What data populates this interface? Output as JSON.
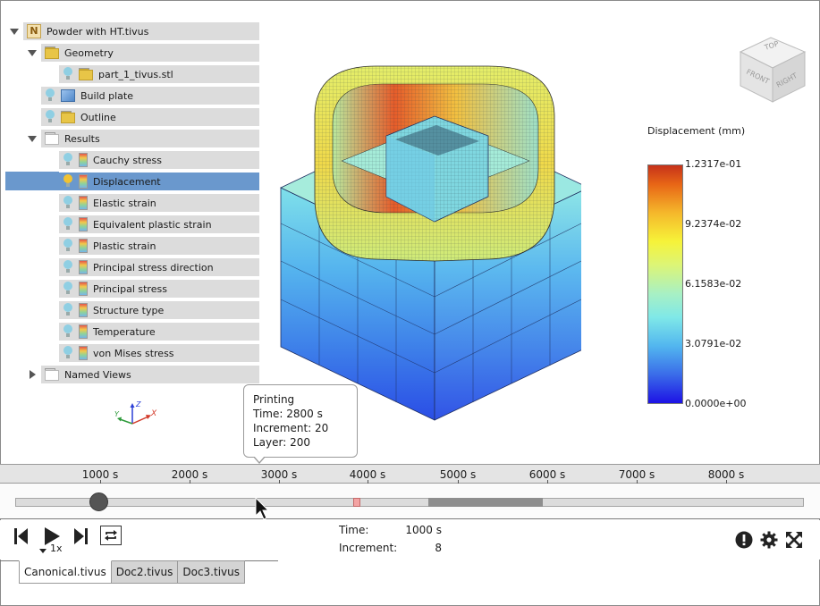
{
  "tree": {
    "root": {
      "label": "Powder with HT.tivus",
      "icon": "nastran-logo-icon"
    },
    "geometry": {
      "label": "Geometry",
      "icon": "folder-icon"
    },
    "part": {
      "label": "part_1_tivus.stl",
      "icon": "folder-icon"
    },
    "build_plate": {
      "label": "Build plate",
      "icon": "build-plate-icon"
    },
    "outline": {
      "label": "Outline",
      "icon": "folder-icon"
    },
    "results": {
      "label": "Results",
      "icon": "empty-folder-icon"
    },
    "result_items": [
      {
        "label": "Cauchy stress",
        "selected": false
      },
      {
        "label": "Displacement",
        "selected": true
      },
      {
        "label": "Elastic strain",
        "selected": false
      },
      {
        "label": "Equivalent plastic strain",
        "selected": false
      },
      {
        "label": "Plastic strain",
        "selected": false
      },
      {
        "label": "Principal stress direction",
        "selected": false
      },
      {
        "label": "Principal stress",
        "selected": false
      },
      {
        "label": "Structure type",
        "selected": false
      },
      {
        "label": "Temperature",
        "selected": false
      },
      {
        "label": "von Mises stress",
        "selected": false
      }
    ],
    "named_views": {
      "label": "Named Views"
    }
  },
  "triad": {
    "x": "X",
    "y": "Y",
    "z": "Z"
  },
  "viewcube": {
    "top": "TOP",
    "front": "FRONT",
    "right": "RIGHT"
  },
  "legend": {
    "title": "Displacement (mm)",
    "ticks": [
      "1.2317e-01",
      "9.2374e-02",
      "6.1583e-02",
      "3.0791e-02",
      "0.0000e+00"
    ],
    "colors": {
      "min": "#1d12e5",
      "max": "#c6321a"
    }
  },
  "tooltip": {
    "line1": "Printing",
    "line2": "Time: 2800 s",
    "line3": "Increment: 20",
    "line4": "Layer: 200"
  },
  "timeline": {
    "ticks": [
      "1000 s",
      "2000 s",
      "3000 s",
      "4000 s",
      "5000 s",
      "6000 s",
      "7000 s",
      "8000 s"
    ],
    "position_seconds": 1000
  },
  "playback": {
    "speed": "1x",
    "time_label": "Time:",
    "time_value": "1000 s",
    "increment_label": "Increment:",
    "increment_value": "8"
  },
  "tabs": [
    {
      "label": "Canonical.tivus",
      "active": true
    },
    {
      "label": "Doc2.tivus",
      "active": false
    },
    {
      "label": "Doc3.tivus",
      "active": false
    }
  ]
}
